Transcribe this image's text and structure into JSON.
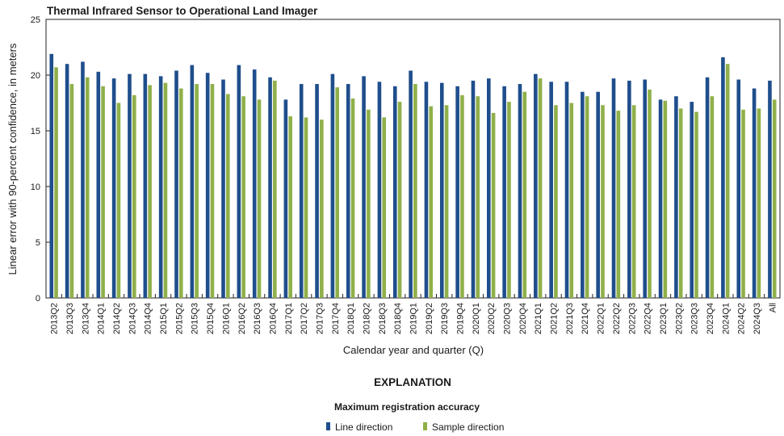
{
  "chart_data": {
    "type": "bar",
    "title": "Thermal Infrared Sensor to Operational Land Imager",
    "xlabel": "Calendar year and quarter (Q)",
    "ylabel": "Linear error with 90-percent confidence, in meters",
    "ylim": [
      0,
      25
    ],
    "yticks": [
      "0",
      "5",
      "10",
      "15",
      "20",
      "25"
    ],
    "grid": false,
    "categories": [
      "2013Q2",
      "2013Q3",
      "2013Q4",
      "2014Q1",
      "2014Q2",
      "2014Q3",
      "2014Q4",
      "2015Q1",
      "2015Q2",
      "2015Q3",
      "2015Q4",
      "2016Q1",
      "2016Q2",
      "2016Q3",
      "2016Q4",
      "2017Q1",
      "2017Q2",
      "2017Q3",
      "2017Q4",
      "2018Q1",
      "2018Q2",
      "2018Q3",
      "2018Q4",
      "2019Q1",
      "2019Q2",
      "2019Q3",
      "2019Q4",
      "2020Q1",
      "2020Q2",
      "2020Q3",
      "2020Q4",
      "2021Q1",
      "2021Q2",
      "2021Q3",
      "2021Q4",
      "2022Q1",
      "2022Q2",
      "2022Q3",
      "2022Q4",
      "2023Q1",
      "2023Q2",
      "2023Q3",
      "2023Q4",
      "2024Q1",
      "2024Q2",
      "2024Q3",
      "All"
    ],
    "series": [
      {
        "name": "Line direction",
        "color": "#1f4e8c",
        "values": [
          21.9,
          21.0,
          21.2,
          20.3,
          19.7,
          20.1,
          20.1,
          19.9,
          20.4,
          20.9,
          20.2,
          19.6,
          20.9,
          20.5,
          19.8,
          17.8,
          19.2,
          19.2,
          20.1,
          19.2,
          19.9,
          19.4,
          19.0,
          20.4,
          19.4,
          19.3,
          19.0,
          19.5,
          19.7,
          19.0,
          19.2,
          20.1,
          19.4,
          19.4,
          18.5,
          18.5,
          19.7,
          19.5,
          19.6,
          17.8,
          18.1,
          17.6,
          19.8,
          21.6,
          19.6,
          18.8,
          19.5
        ]
      },
      {
        "name": "Sample direction",
        "color": "#8fb04a",
        "values": [
          20.7,
          19.2,
          19.8,
          19.0,
          17.5,
          18.2,
          19.1,
          19.3,
          18.8,
          19.2,
          19.2,
          18.3,
          18.1,
          17.8,
          19.5,
          16.3,
          16.2,
          16.0,
          18.9,
          17.9,
          16.9,
          16.2,
          17.6,
          19.2,
          17.2,
          17.3,
          18.2,
          18.1,
          16.6,
          17.6,
          18.5,
          19.7,
          17.3,
          17.5,
          18.1,
          17.3,
          16.8,
          17.3,
          18.7,
          17.7,
          17.0,
          16.7,
          18.1,
          21.0,
          16.9,
          17.0,
          17.8
        ]
      }
    ],
    "legend_position": "bottom-center"
  },
  "legend": {
    "explanation": "EXPLANATION",
    "title": "Maximum registration accuracy",
    "items": [
      "Line direction",
      "Sample direction"
    ]
  }
}
